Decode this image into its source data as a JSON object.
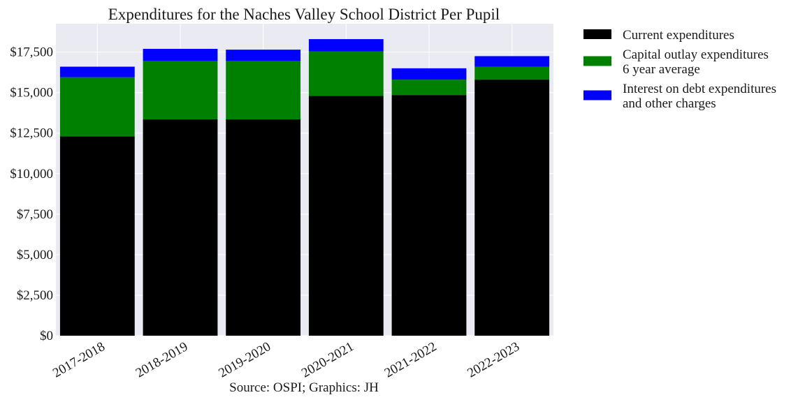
{
  "chart_data": {
    "type": "bar",
    "stacked": true,
    "title": "Expenditures for the Naches Valley School District Per Pupil",
    "xlabel": "",
    "ylabel": "",
    "caption": "Source: OSPI; Graphics: JH",
    "categories": [
      "2017-2018",
      "2018-2019",
      "2019-2020",
      "2020-2021",
      "2021-2022",
      "2022-2023"
    ],
    "series": [
      {
        "name": "Current expenditures",
        "legend_lines": [
          "Current expenditures"
        ],
        "color": "#000000",
        "values": [
          12300,
          13350,
          13350,
          14800,
          14850,
          15800
        ]
      },
      {
        "name": "Capital outlay expenditures 6 year average",
        "legend_lines": [
          "Capital outlay expenditures",
          "6 year average"
        ],
        "color": "#008000",
        "values": [
          3650,
          3600,
          3600,
          2750,
          950,
          800
        ]
      },
      {
        "name": "Interest on debt expenditures and other charges",
        "legend_lines": [
          "Interest on debt expenditures",
          "and other charges"
        ],
        "color": "#0000ff",
        "values": [
          650,
          750,
          700,
          750,
          700,
          650
        ]
      }
    ],
    "ylim": [
      0,
      19250
    ],
    "yticks": [
      0,
      2500,
      5000,
      7500,
      10000,
      12500,
      15000,
      17500
    ],
    "ytick_labels": [
      "$0",
      "$2,500",
      "$5,000",
      "$7,500",
      "$10,000",
      "$12,500",
      "$15,000",
      "$17,500"
    ],
    "grid": true,
    "legend_position": "outside-right-top",
    "background_color": "#eaeaf2"
  }
}
